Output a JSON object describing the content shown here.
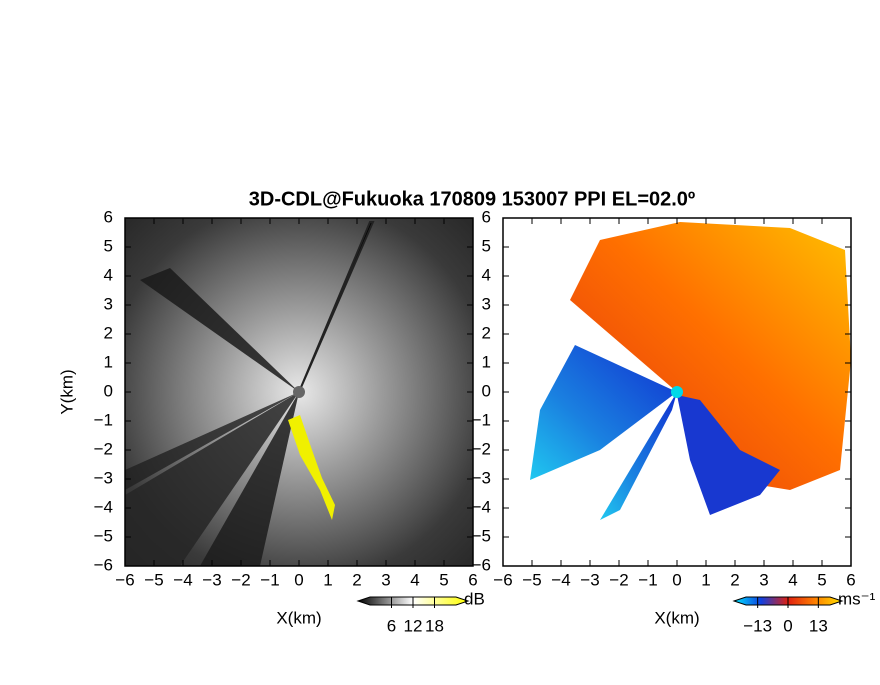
{
  "title": "3D-CDL@Fukuoka 170809 153007 PPI EL=02.0º",
  "chart_data": [
    {
      "type": "ppi",
      "xlabel": "X(km)",
      "ylabel": "Y(km)",
      "xlim": [
        -6,
        6
      ],
      "ylim": [
        -6,
        6
      ],
      "xticks": [
        {
          "value": -6,
          "label": "−6"
        },
        {
          "value": -5,
          "label": "−5"
        },
        {
          "value": -4,
          "label": "−4"
        },
        {
          "value": -3,
          "label": "−3"
        },
        {
          "value": -2,
          "label": "−2"
        },
        {
          "value": -1,
          "label": "−1"
        },
        0,
        1,
        2,
        3,
        4,
        5,
        6
      ],
      "yticks": [
        {
          "value": -6,
          "label": "−6"
        },
        {
          "value": -5,
          "label": "−5"
        },
        {
          "value": -4,
          "label": "−4"
        },
        {
          "value": -3,
          "label": "−3"
        },
        {
          "value": -2,
          "label": "−2"
        },
        {
          "value": -1,
          "label": "−1"
        },
        0,
        1,
        2,
        3,
        4,
        5,
        6
      ],
      "colorbar": {
        "label": "dB",
        "lim": [
          0,
          24
        ],
        "ticks": [
          6,
          12,
          18
        ],
        "colors": [
          "#000000",
          "#ffffff",
          "#ffff00"
        ]
      }
    },
    {
      "type": "ppi",
      "xlabel": "X(km)",
      "xlim": [
        -6,
        6
      ],
      "ylim": [
        -6,
        6
      ],
      "xticks": [
        {
          "value": -6,
          "label": "−6"
        },
        {
          "value": -5,
          "label": "−5"
        },
        {
          "value": -4,
          "label": "−4"
        },
        {
          "value": -3,
          "label": "−3"
        },
        {
          "value": -2,
          "label": "−2"
        },
        {
          "value": -1,
          "label": "−1"
        },
        0,
        1,
        2,
        3,
        4,
        5,
        6
      ],
      "yticks": [
        {
          "value": -6,
          "label": "−6"
        },
        {
          "value": -5,
          "label": "−5"
        },
        {
          "value": -4,
          "label": "−4"
        },
        {
          "value": -3,
          "label": "−3"
        },
        {
          "value": -2,
          "label": "−2"
        },
        {
          "value": -1,
          "label": "−1"
        },
        0,
        1,
        2,
        3,
        4,
        5,
        6
      ],
      "colorbar": {
        "label": "ms⁻¹",
        "lim": [
          -18,
          18
        ],
        "ticks": [
          {
            "value": -13,
            "label": "−13"
          },
          0,
          13
        ],
        "colors": [
          "#00e5ff",
          "#1040e0",
          "#e02010",
          "#ff8000",
          "#ffe000"
        ]
      }
    }
  ]
}
